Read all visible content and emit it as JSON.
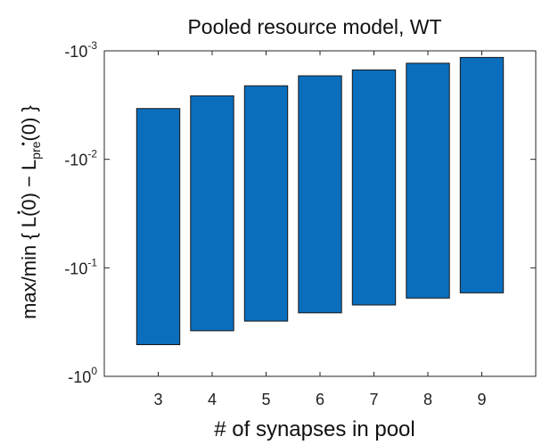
{
  "chart_data": {
    "type": "bar",
    "title": "Pooled resource model, WT",
    "xlabel": "# of synapses in pool",
    "ylabel": {
      "prefix": "max/min",
      "open_brace": "{",
      "term1_letter": "L",
      "term1_arg": "(0)",
      "minus": "−",
      "term2_letter": "L",
      "term2_sub": "pre",
      "term2_arg": "(0)",
      "close_brace": "}"
    },
    "y_scale": "log",
    "y_direction": "reversed",
    "ylim": [
      -0.001,
      -1
    ],
    "y_ticks": [
      {
        "value": -0.001,
        "base": "-10",
        "exp": "-3"
      },
      {
        "value": -0.01,
        "base": "-10",
        "exp": "-2"
      },
      {
        "value": -0.1,
        "base": "-10",
        "exp": "-1"
      },
      {
        "value": -1,
        "base": "-10",
        "exp": "0"
      }
    ],
    "categories": [
      "3",
      "4",
      "5",
      "6",
      "7",
      "8",
      "9"
    ],
    "bars": [
      {
        "x": "3",
        "max": -0.0034,
        "min": -0.51
      },
      {
        "x": "4",
        "max": -0.0026,
        "min": -0.38
      },
      {
        "x": "5",
        "max": -0.0021,
        "min": -0.31
      },
      {
        "x": "6",
        "max": -0.0017,
        "min": -0.26
      },
      {
        "x": "7",
        "max": -0.0015,
        "min": -0.22
      },
      {
        "x": "8",
        "max": -0.0013,
        "min": -0.19
      },
      {
        "x": "9",
        "max": -0.00115,
        "min": -0.17
      }
    ],
    "bar_color": "#0a6ebd",
    "grid": false,
    "legend": false
  }
}
